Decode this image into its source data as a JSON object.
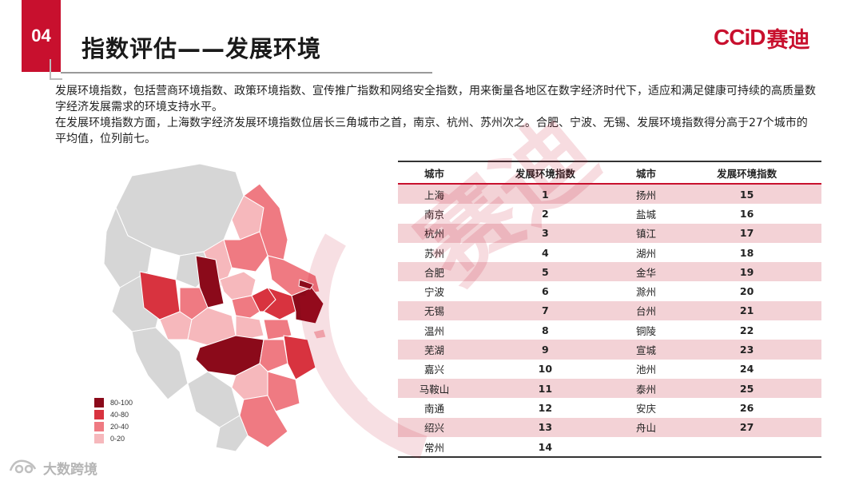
{
  "section_number": "04",
  "page_title": "指数评估——发展环境",
  "logo": {
    "latin": "CCiD",
    "cn": "赛迪"
  },
  "description": [
    "发展环境指数，包括营商环境指数、政策环境指数、宣传推广指数和网络安全指数，用来衡量各地区在数字经济时代下，适应和满足健康可持续的高质量数字经济发展需求的环境支持水平。",
    "在发展环境指数方面，上海数字经济发展环境指数位居长三角城市之首，南京、杭州、苏州次之。合肥、宁波、无锡、发展环境指数得分高于27个城市的平均值，位列前七。"
  ],
  "table": {
    "headers": [
      "城市",
      "发展环境指数",
      "城市",
      "发展环境指数"
    ],
    "rows": [
      [
        "上海",
        "1",
        "扬州",
        "15"
      ],
      [
        "南京",
        "2",
        "盐城",
        "16"
      ],
      [
        "杭州",
        "3",
        "镇江",
        "17"
      ],
      [
        "苏州",
        "4",
        "湖州",
        "18"
      ],
      [
        "合肥",
        "5",
        "金华",
        "19"
      ],
      [
        "宁波",
        "6",
        "滁州",
        "20"
      ],
      [
        "无锡",
        "7",
        "台州",
        "21"
      ],
      [
        "温州",
        "8",
        "铜陵",
        "22"
      ],
      [
        "芜湖",
        "9",
        "宣城",
        "23"
      ],
      [
        "嘉兴",
        "10",
        "池州",
        "24"
      ],
      [
        "马鞍山",
        "11",
        "泰州",
        "25"
      ],
      [
        "南通",
        "12",
        "安庆",
        "26"
      ],
      [
        "绍兴",
        "13",
        "舟山",
        "27"
      ],
      [
        "常州",
        "14",
        "",
        ""
      ]
    ]
  },
  "legend": [
    {
      "label": "80-100",
      "color": "#8b0a1a"
    },
    {
      "label": "40-80",
      "color": "#d8333f"
    },
    {
      "label": "20-40",
      "color": "#ef7a82"
    },
    {
      "label": "0-20",
      "color": "#f6b8bc"
    }
  ],
  "map_colors": {
    "no_data": "#d6d6d6",
    "border": "#ffffff"
  },
  "watermark": {
    "text": "赛迪",
    "color": "#c8102e"
  },
  "footer": {
    "brand": "大数跨境"
  }
}
